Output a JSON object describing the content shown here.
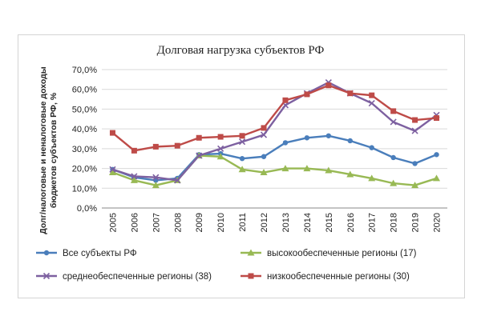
{
  "chart_data": {
    "type": "line",
    "title": "Долговая нагрузка субъектов РФ",
    "ylabel": [
      "Долг/налоговые и неналоговые доходы",
      "бюджетов субъектов РФ, %"
    ],
    "xlabel": "",
    "categories": [
      "2005",
      "2006",
      "2007",
      "2008",
      "2009",
      "2010",
      "2011",
      "2012",
      "2013",
      "2014",
      "2015",
      "2016",
      "2017",
      "2018",
      "2019",
      "2020"
    ],
    "yticks": [
      "0,0%",
      "10,0%",
      "20,0%",
      "30,0%",
      "40,0%",
      "50,0%",
      "60,0%",
      "70,0%"
    ],
    "ylim": [
      0,
      70
    ],
    "grid": true,
    "legend_position": "bottom",
    "series": [
      {
        "key": "all",
        "name": "Все субъекты РФ",
        "color": "#4a7ebb",
        "marker": "circle",
        "values": [
          19.5,
          15.5,
          14,
          15,
          27,
          27.5,
          25,
          26,
          33,
          35.5,
          36.5,
          34,
          30.5,
          25.5,
          22.5,
          27
        ]
      },
      {
        "key": "high",
        "name": "высокообеспеченные регионы (17)",
        "color": "#98b954",
        "marker": "triangle",
        "values": [
          18,
          14,
          11.5,
          14,
          26.5,
          26,
          19.5,
          18,
          20,
          20,
          19,
          17,
          15,
          12.5,
          11.5,
          15
        ]
      },
      {
        "key": "mid",
        "name": "среднеобеспеченные регионы (38)",
        "color": "#7d60a0",
        "marker": "cross",
        "values": [
          19.5,
          16,
          15.5,
          14,
          26.5,
          30,
          33.5,
          37,
          52,
          58,
          63.5,
          58,
          53,
          43.5,
          39,
          47
        ]
      },
      {
        "key": "low",
        "name": "низкообеспеченные регионы (30)",
        "color": "#be4b48",
        "marker": "square",
        "values": [
          38,
          29,
          31,
          31.5,
          35.5,
          36,
          36.5,
          40.5,
          54.5,
          57.5,
          62,
          58,
          57,
          49,
          44.5,
          45.5
        ]
      }
    ]
  }
}
